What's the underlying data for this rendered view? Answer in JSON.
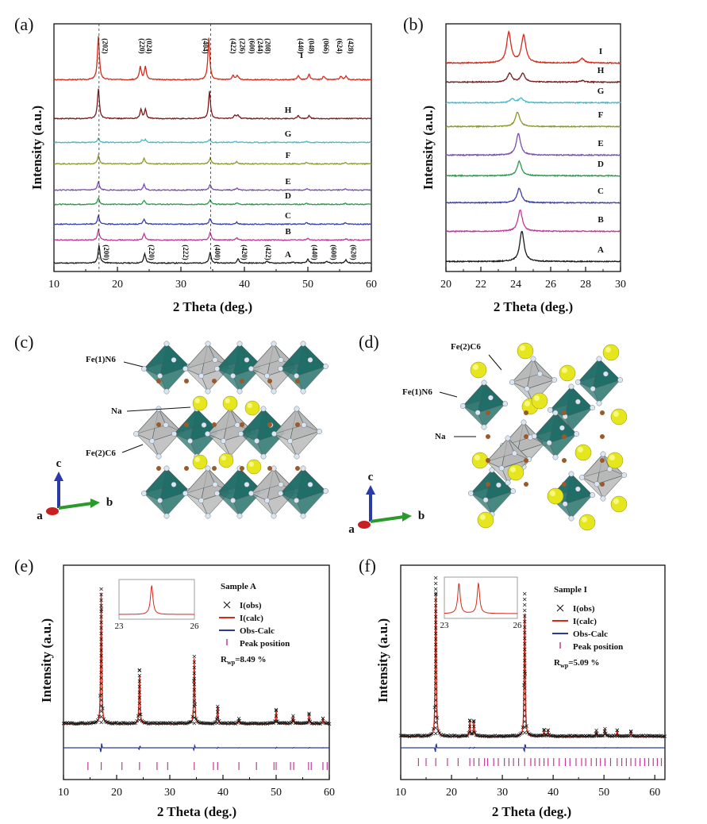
{
  "figure": {
    "panel_labels": [
      "(a)",
      "(b)",
      "(c)",
      "(d)",
      "(e)",
      "(f)"
    ]
  },
  "chart_data": [
    {
      "panel": "(a)",
      "type": "line",
      "xlabel": "2 Theta (deg.)",
      "ylabel": "Intensity (a.u.)",
      "xlim": [
        10,
        60
      ],
      "xticks": [
        10,
        20,
        30,
        40,
        50,
        60
      ],
      "reference_lines": [
        17.1,
        34.7
      ],
      "series": [
        {
          "name": "A",
          "color": "#1a1a1a",
          "peaks": [
            [
              17.1,
              1.0
            ],
            [
              24.3,
              0.55
            ],
            [
              34.6,
              0.6
            ],
            [
              39.0,
              0.25
            ],
            [
              43.6,
              0.12
            ],
            [
              47.6,
              0.06
            ],
            [
              50.0,
              0.22
            ],
            [
              53.0,
              0.12
            ],
            [
              56.0,
              0.2
            ]
          ]
        },
        {
          "name": "B",
          "color": "#c0399a",
          "peaks": [
            [
              17.0,
              0.9
            ],
            [
              24.2,
              0.6
            ],
            [
              34.6,
              0.7
            ],
            [
              38.8,
              0.2
            ],
            [
              50.0,
              0.15
            ],
            [
              56.0,
              0.12
            ]
          ]
        },
        {
          "name": "C",
          "color": "#3a3fa8",
          "peaks": [
            [
              17.0,
              0.85
            ],
            [
              24.2,
              0.55
            ],
            [
              34.6,
              0.6
            ],
            [
              38.8,
              0.2
            ],
            [
              49.8,
              0.15
            ],
            [
              55.9,
              0.12
            ]
          ]
        },
        {
          "name": "D",
          "color": "#2a9a4a",
          "peaks": [
            [
              17.0,
              0.8
            ],
            [
              24.2,
              0.55
            ],
            [
              34.6,
              0.55
            ],
            [
              38.8,
              0.2
            ],
            [
              49.8,
              0.15
            ],
            [
              55.9,
              0.12
            ]
          ]
        },
        {
          "name": "E",
          "color": "#7a4fa8",
          "peaks": [
            [
              17.0,
              0.85
            ],
            [
              24.2,
              0.6
            ],
            [
              34.6,
              0.6
            ],
            [
              38.8,
              0.2
            ],
            [
              49.8,
              0.15
            ],
            [
              55.9,
              0.12
            ]
          ]
        },
        {
          "name": "F",
          "color": "#8a9a2a",
          "peaks": [
            [
              17.0,
              0.8
            ],
            [
              24.2,
              0.55
            ],
            [
              34.6,
              0.55
            ],
            [
              38.8,
              0.2
            ],
            [
              49.8,
              0.15
            ],
            [
              55.9,
              0.12
            ]
          ]
        },
        {
          "name": "G",
          "color": "#4ab8c8",
          "peaks": [
            [
              17.0,
              0.6
            ],
            [
              23.9,
              0.4
            ],
            [
              24.4,
              0.4
            ],
            [
              34.5,
              0.45
            ],
            [
              38.6,
              0.15
            ],
            [
              49.8,
              0.12
            ]
          ]
        },
        {
          "name": "H",
          "color": "#7a1a1a",
          "peaks": [
            [
              17.0,
              1.0
            ],
            [
              23.7,
              0.3
            ],
            [
              24.4,
              0.3
            ],
            [
              34.5,
              0.9
            ],
            [
              38.5,
              0.12
            ],
            [
              39.0,
              0.12
            ],
            [
              48.5,
              0.1
            ],
            [
              50.2,
              0.1
            ]
          ]
        },
        {
          "name": "I",
          "color": "#d42a1a",
          "peaks": [
            [
              17.0,
              1.0
            ],
            [
              23.6,
              0.3
            ],
            [
              24.4,
              0.3
            ],
            [
              34.4,
              0.95
            ],
            [
              38.2,
              0.1
            ],
            [
              38.9,
              0.1
            ],
            [
              48.5,
              0.1
            ],
            [
              50.2,
              0.12
            ],
            [
              52.5,
              0.08
            ],
            [
              55.2,
              0.08
            ],
            [
              56.0,
              0.08
            ]
          ]
        }
      ],
      "peak_labels_bottom": [
        {
          "x": 17.9,
          "label": "(200)"
        },
        {
          "x": 25.0,
          "label": "(220)"
        },
        {
          "x": 30.4,
          "label": "(222)"
        },
        {
          "x": 35.4,
          "label": "(400)"
        },
        {
          "x": 39.6,
          "label": "(420)"
        },
        {
          "x": 43.4,
          "label": "(422)"
        },
        {
          "x": 50.7,
          "label": "(440)"
        },
        {
          "x": 53.7,
          "label": "(600)"
        },
        {
          "x": 56.8,
          "label": "(620)"
        }
      ],
      "peak_labels_top": [
        {
          "x": 17.7,
          "label": "(202)"
        },
        {
          "x": 23.5,
          "label": "(220)"
        },
        {
          "x": 24.6,
          "label": "(024)"
        },
        {
          "x": 33.5,
          "label": "(404)"
        },
        {
          "x": 37.9,
          "label": "(422)"
        },
        {
          "x": 39.3,
          "label": "(226)"
        },
        {
          "x": 40.8,
          "label": "(600)"
        },
        {
          "x": 42.1,
          "label": "(244)"
        },
        {
          "x": 43.3,
          "label": "(208)"
        },
        {
          "x": 48.5,
          "label": "(440)"
        },
        {
          "x": 50.2,
          "label": "(048)"
        },
        {
          "x": 52.5,
          "label": "(066)"
        },
        {
          "x": 54.6,
          "label": "(624)"
        },
        {
          "x": 56.4,
          "label": "(428)"
        }
      ]
    },
    {
      "panel": "(b)",
      "type": "line",
      "xlabel": "2 Theta (deg.)",
      "ylabel": "Intensity (a.u.)",
      "xlim": [
        20,
        30
      ],
      "xticks": [
        20,
        22,
        24,
        26,
        28,
        30
      ],
      "series": [
        {
          "name": "A",
          "color": "#1a1a1a",
          "peaks": [
            [
              24.35,
              1.0
            ]
          ]
        },
        {
          "name": "B",
          "color": "#c0399a",
          "peaks": [
            [
              24.25,
              0.85
            ]
          ]
        },
        {
          "name": "C",
          "color": "#3a3fa8",
          "peaks": [
            [
              24.2,
              0.7
            ]
          ]
        },
        {
          "name": "D",
          "color": "#2a9a4a",
          "peaks": [
            [
              24.2,
              0.7
            ]
          ]
        },
        {
          "name": "E",
          "color": "#7a4fa8",
          "peaks": [
            [
              24.15,
              0.85
            ]
          ]
        },
        {
          "name": "F",
          "color": "#8a9a2a",
          "peaks": [
            [
              24.1,
              0.7
            ]
          ]
        },
        {
          "name": "G",
          "color": "#4ab8c8",
          "peaks": [
            [
              23.8,
              0.3
            ],
            [
              24.3,
              0.35
            ]
          ]
        },
        {
          "name": "H",
          "color": "#7a1a1a",
          "peaks": [
            [
              23.65,
              0.6
            ],
            [
              24.4,
              0.6
            ],
            [
              27.8,
              0.1
            ]
          ]
        },
        {
          "name": "I",
          "color": "#d42a1a",
          "peaks": [
            [
              23.6,
              1.0
            ],
            [
              24.45,
              0.9
            ],
            [
              27.8,
              0.15
            ]
          ]
        }
      ]
    },
    {
      "panel": "(e)",
      "type": "line",
      "xlabel": "2 Theta (deg.)",
      "ylabel": "Intensity (a.u.)",
      "xlim": [
        10,
        60
      ],
      "xticks": [
        10,
        20,
        30,
        40,
        50,
        60
      ],
      "title": "Sample A",
      "legend": [
        "I(obs)",
        "I(calc)",
        "Obs-Calc",
        "Peak position"
      ],
      "rwp_label": "Rwp=8.49 %",
      "rwp_main": "R",
      "rwp_sub": "wp",
      "rwp_rest": "=8.49 %",
      "peaks": [
        [
          17.1,
          1.0
        ],
        [
          24.3,
          0.4
        ],
        [
          34.6,
          0.5
        ],
        [
          39.0,
          0.13
        ],
        [
          43.0,
          0.04
        ],
        [
          50.0,
          0.1
        ],
        [
          53.2,
          0.06
        ],
        [
          56.2,
          0.07
        ],
        [
          58.8,
          0.04
        ]
      ],
      "peak_positions": [
        14.6,
        17.1,
        21.0,
        24.3,
        27.6,
        29.6,
        34.6,
        38.2,
        39.0,
        43.0,
        46.3,
        49.6,
        50.0,
        52.7,
        53.3,
        56.1,
        56.6,
        58.8,
        59.6
      ],
      "inset": {
        "xlim": [
          23,
          26
        ],
        "xticks": [
          23,
          26
        ],
        "peaks": [
          [
            24.3,
            1.0
          ]
        ]
      }
    },
    {
      "panel": "(f)",
      "type": "line",
      "xlabel": "2 Theta (deg.)",
      "ylabel": "Intensity (a.u.)",
      "xlim": [
        10,
        62
      ],
      "xticks": [
        10,
        20,
        30,
        40,
        50,
        60
      ],
      "title": "Sample I",
      "legend": [
        "I(obs)",
        "I(calc)",
        "Obs-Calc",
        "Peak position"
      ],
      "rwp_label": "Rwp=5.09 %",
      "rwp_main": "R",
      "rwp_sub": "wp",
      "rwp_rest": "=5.09 %",
      "peaks": [
        [
          16.9,
          1.0
        ],
        [
          23.6,
          0.1
        ],
        [
          24.4,
          0.1
        ],
        [
          34.4,
          0.9
        ],
        [
          38.2,
          0.04
        ],
        [
          39.0,
          0.04
        ],
        [
          48.5,
          0.04
        ],
        [
          50.2,
          0.05
        ],
        [
          52.6,
          0.04
        ],
        [
          55.3,
          0.03
        ]
      ],
      "peak_positions": [
        13.5,
        15.0,
        16.9,
        19.2,
        21.3,
        23.6,
        24.4,
        25.4,
        26.5,
        27.1,
        28.3,
        29.2,
        30.4,
        31.3,
        32.2,
        33.2,
        34.4,
        35.6,
        36.4,
        37.3,
        38.2,
        39.0,
        40.1,
        41.2,
        42.4,
        43.3,
        44.5,
        45.6,
        46.4,
        47.5,
        48.5,
        49.3,
        50.2,
        51.3,
        52.6,
        53.5,
        54.4,
        55.3,
        56.2,
        57.1,
        58.0,
        58.8,
        59.7,
        60.5,
        61.3
      ],
      "inset": {
        "xlim": [
          23,
          26
        ],
        "xticks": [
          23,
          26
        ],
        "peaks": [
          [
            23.6,
            1.0
          ],
          [
            24.4,
            1.0
          ]
        ]
      }
    }
  ],
  "structures": [
    {
      "panel": "(c)",
      "labels": [
        "Fe(1)N6",
        "Na",
        "Fe(2)C6"
      ],
      "axes": {
        "c": "c",
        "b": "b",
        "a": "a"
      }
    },
    {
      "panel": "(d)",
      "labels": [
        "Fe(2)C6",
        "Fe(1)N6",
        "Na"
      ],
      "axes": {
        "c": "c",
        "b": "b",
        "a": "a"
      }
    }
  ],
  "colors": {
    "octa_dark": "#1f6e68",
    "octa_gray": "#b8b8b8",
    "sodium": "#e6e61e",
    "calc_line": "#d42a1a",
    "diff_line": "#2a3a9a",
    "peak_tick": "#c0399a"
  }
}
